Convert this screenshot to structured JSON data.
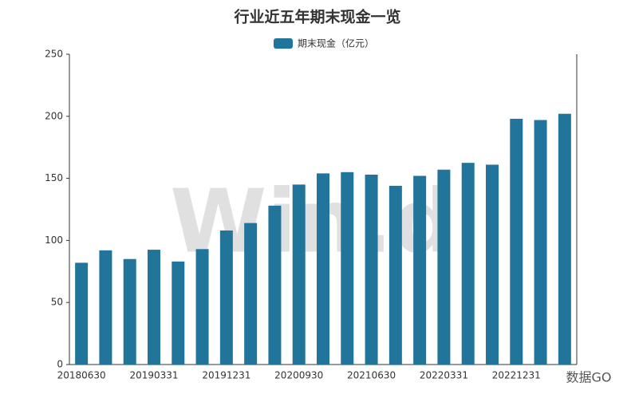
{
  "chart_data": {
    "type": "bar",
    "title": "行业近五年期末现金一览",
    "categories": [
      "20180630",
      null,
      null,
      "20190331",
      null,
      null,
      "20191231",
      null,
      null,
      "20200930",
      null,
      null,
      "20210630",
      null,
      null,
      "20220331",
      null,
      null,
      "20221231",
      null,
      null
    ],
    "series": [
      {
        "name": "期末现金（亿元）",
        "color": "#21759b",
        "values": [
          82,
          92,
          85,
          92.5,
          83,
          93,
          108,
          114,
          128,
          145,
          154,
          155,
          153,
          144,
          152,
          157,
          162.5,
          161,
          198,
          197,
          202
        ]
      }
    ],
    "ylim": [
      0,
      250
    ],
    "yticks": [
      0,
      50,
      100,
      150,
      200,
      250
    ],
    "grid": false,
    "watermark": "Win.d",
    "source": "数据GO"
  }
}
